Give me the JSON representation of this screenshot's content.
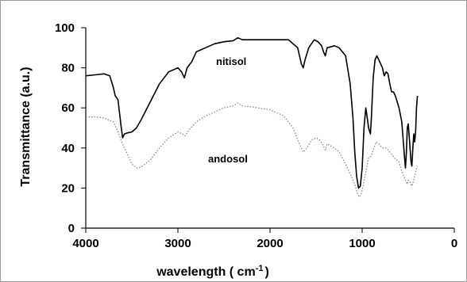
{
  "chart_data": {
    "type": "line",
    "title": "",
    "xlabel": "wavelength ( cm",
    "xlabel_sup": "-1",
    "xlabel_end": ")",
    "ylabel": "Transmittance (a.u.)",
    "xlim": [
      4000,
      0
    ],
    "ylim": [
      0,
      100
    ],
    "xticks": [
      4000,
      3000,
      2000,
      1000,
      0
    ],
    "yticks": [
      0,
      20,
      40,
      60,
      80,
      100
    ],
    "grid": false,
    "legend": "inline labels",
    "series": [
      {
        "name": "nitisol",
        "color": "#000000",
        "style": "solid",
        "points": [
          [
            4000,
            76
          ],
          [
            3900,
            76.5
          ],
          [
            3800,
            77
          ],
          [
            3740,
            76
          ],
          [
            3700,
            70
          ],
          [
            3680,
            66
          ],
          [
            3650,
            64
          ],
          [
            3620,
            52
          ],
          [
            3600,
            45
          ],
          [
            3580,
            47
          ],
          [
            3550,
            47.5
          ],
          [
            3500,
            48
          ],
          [
            3450,
            50
          ],
          [
            3400,
            54
          ],
          [
            3300,
            63
          ],
          [
            3200,
            72
          ],
          [
            3100,
            78
          ],
          [
            3000,
            80
          ],
          [
            2960,
            78
          ],
          [
            2930,
            75
          ],
          [
            2900,
            80
          ],
          [
            2850,
            83
          ],
          [
            2800,
            88
          ],
          [
            2700,
            90
          ],
          [
            2600,
            92
          ],
          [
            2500,
            93
          ],
          [
            2400,
            93.5
          ],
          [
            2350,
            95
          ],
          [
            2300,
            94
          ],
          [
            2200,
            94
          ],
          [
            2000,
            94
          ],
          [
            1800,
            94
          ],
          [
            1700,
            90
          ],
          [
            1660,
            82
          ],
          [
            1640,
            80
          ],
          [
            1620,
            84
          ],
          [
            1580,
            90
          ],
          [
            1520,
            94
          ],
          [
            1480,
            93
          ],
          [
            1440,
            91
          ],
          [
            1420,
            88
          ],
          [
            1400,
            86
          ],
          [
            1380,
            90
          ],
          [
            1300,
            91
          ],
          [
            1250,
            90
          ],
          [
            1180,
            86
          ],
          [
            1130,
            72
          ],
          [
            1100,
            55
          ],
          [
            1080,
            38
          ],
          [
            1060,
            26
          ],
          [
            1040,
            20
          ],
          [
            1020,
            21
          ],
          [
            1000,
            30
          ],
          [
            980,
            50
          ],
          [
            960,
            60
          ],
          [
            945,
            55
          ],
          [
            930,
            50
          ],
          [
            910,
            47
          ],
          [
            900,
            55
          ],
          [
            880,
            75
          ],
          [
            860,
            84
          ],
          [
            840,
            86
          ],
          [
            820,
            84
          ],
          [
            800,
            82
          ],
          [
            780,
            80
          ],
          [
            760,
            76
          ],
          [
            740,
            78
          ],
          [
            720,
            77
          ],
          [
            700,
            72
          ],
          [
            680,
            68
          ],
          [
            660,
            68
          ],
          [
            640,
            66
          ],
          [
            600,
            60
          ],
          [
            570,
            53
          ],
          [
            540,
            35
          ],
          [
            530,
            30
          ],
          [
            520,
            38
          ],
          [
            510,
            50
          ],
          [
            500,
            52
          ],
          [
            490,
            46
          ],
          [
            470,
            33
          ],
          [
            460,
            31
          ],
          [
            450,
            40
          ],
          [
            440,
            47
          ],
          [
            430,
            43
          ],
          [
            420,
            48
          ],
          [
            410,
            60
          ],
          [
            400,
            66
          ]
        ]
      },
      {
        "name": "andosol",
        "color": "#888888",
        "style": "dotted",
        "points": [
          [
            4000,
            55.5
          ],
          [
            3900,
            55.5
          ],
          [
            3800,
            55
          ],
          [
            3700,
            53
          ],
          [
            3650,
            48
          ],
          [
            3600,
            42
          ],
          [
            3550,
            37
          ],
          [
            3500,
            32
          ],
          [
            3450,
            30
          ],
          [
            3400,
            30.5
          ],
          [
            3300,
            34
          ],
          [
            3200,
            40
          ],
          [
            3100,
            45
          ],
          [
            3000,
            48
          ],
          [
            2950,
            47
          ],
          [
            2920,
            46
          ],
          [
            2880,
            49
          ],
          [
            2800,
            53
          ],
          [
            2700,
            56
          ],
          [
            2600,
            58
          ],
          [
            2500,
            60
          ],
          [
            2400,
            61
          ],
          [
            2350,
            62.5
          ],
          [
            2300,
            61
          ],
          [
            2200,
            60.5
          ],
          [
            2000,
            59
          ],
          [
            1850,
            56
          ],
          [
            1750,
            50
          ],
          [
            1680,
            42
          ],
          [
            1640,
            38
          ],
          [
            1600,
            40
          ],
          [
            1550,
            44
          ],
          [
            1500,
            45
          ],
          [
            1460,
            44
          ],
          [
            1420,
            41
          ],
          [
            1400,
            39
          ],
          [
            1380,
            42
          ],
          [
            1300,
            40
          ],
          [
            1250,
            38
          ],
          [
            1180,
            32
          ],
          [
            1120,
            26
          ],
          [
            1080,
            22
          ],
          [
            1050,
            17
          ],
          [
            1030,
            15.5
          ],
          [
            1010,
            17
          ],
          [
            990,
            21
          ],
          [
            960,
            28
          ],
          [
            930,
            35
          ],
          [
            900,
            36
          ],
          [
            880,
            39
          ],
          [
            850,
            43
          ],
          [
            820,
            42
          ],
          [
            800,
            41
          ],
          [
            770,
            40
          ],
          [
            740,
            40
          ],
          [
            700,
            38
          ],
          [
            650,
            35
          ],
          [
            600,
            33
          ],
          [
            560,
            27
          ],
          [
            530,
            24
          ],
          [
            510,
            22
          ],
          [
            500,
            24
          ],
          [
            480,
            23
          ],
          [
            460,
            21
          ],
          [
            440,
            24
          ],
          [
            420,
            28
          ],
          [
            400,
            31
          ]
        ]
      }
    ]
  }
}
